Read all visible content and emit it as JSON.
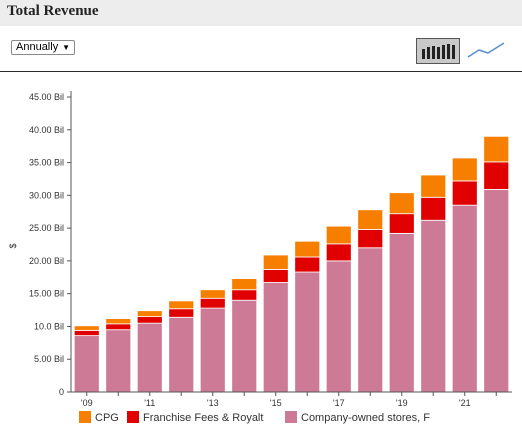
{
  "header": {
    "title": "Total Revenue"
  },
  "controls": {
    "period": "Annually",
    "period_arrow": "▼"
  },
  "icons": {
    "bar_toggle": "bar-chart-icon",
    "line_toggle": "line-chart-icon"
  },
  "colors": {
    "cpg": "#f77f00",
    "franchise": "#e00000",
    "company": "#cc7a96",
    "axis": "#555555",
    "text": "#333333"
  },
  "chart_data": {
    "type": "bar",
    "stacked": true,
    "ylabel": "$",
    "ylim": [
      0,
      45
    ],
    "yticks": [
      0,
      5,
      10,
      15,
      20,
      25,
      30,
      35,
      40,
      45
    ],
    "ytick_labels": [
      "0",
      "5.00 Bil",
      "10.0 Bil",
      "15.00 Bil",
      "20.00 Bil",
      "25.00 Bil",
      "30.00 Bil",
      "35.00 Bil",
      "40.00 Bil",
      "45.00 Bil"
    ],
    "categories": [
      "2009",
      "2010",
      "2011",
      "2012",
      "2013",
      "2014",
      "2015",
      "2016",
      "2017",
      "2018",
      "2019",
      "2020",
      "2021",
      "2022"
    ],
    "xtick_labels": [
      "'09",
      "",
      "'11",
      "",
      "'13",
      "",
      "'15",
      "",
      "'17",
      "",
      "'19",
      "",
      "'21",
      ""
    ],
    "series": [
      {
        "name": "Company-owned stores, F",
        "values": [
          8.6,
          9.5,
          10.5,
          11.4,
          12.8,
          14.0,
          16.7,
          18.3,
          20.0,
          22.0,
          24.2,
          26.2,
          28.5,
          30.9
        ]
      },
      {
        "name": "Franchise Fees & Royalt",
        "values": [
          0.8,
          0.9,
          1.0,
          1.3,
          1.5,
          1.6,
          2.0,
          2.3,
          2.6,
          2.8,
          3.0,
          3.5,
          3.7,
          4.2
        ]
      },
      {
        "name": "CPG",
        "values": [
          0.7,
          0.8,
          0.9,
          1.2,
          1.3,
          1.7,
          2.2,
          2.4,
          2.7,
          3.0,
          3.2,
          3.4,
          3.5,
          3.9
        ]
      }
    ],
    "legend": [
      "CPG",
      "Franchise Fees & Royalt",
      "Company-owned stores, F"
    ],
    "legend_position": "bottom"
  }
}
